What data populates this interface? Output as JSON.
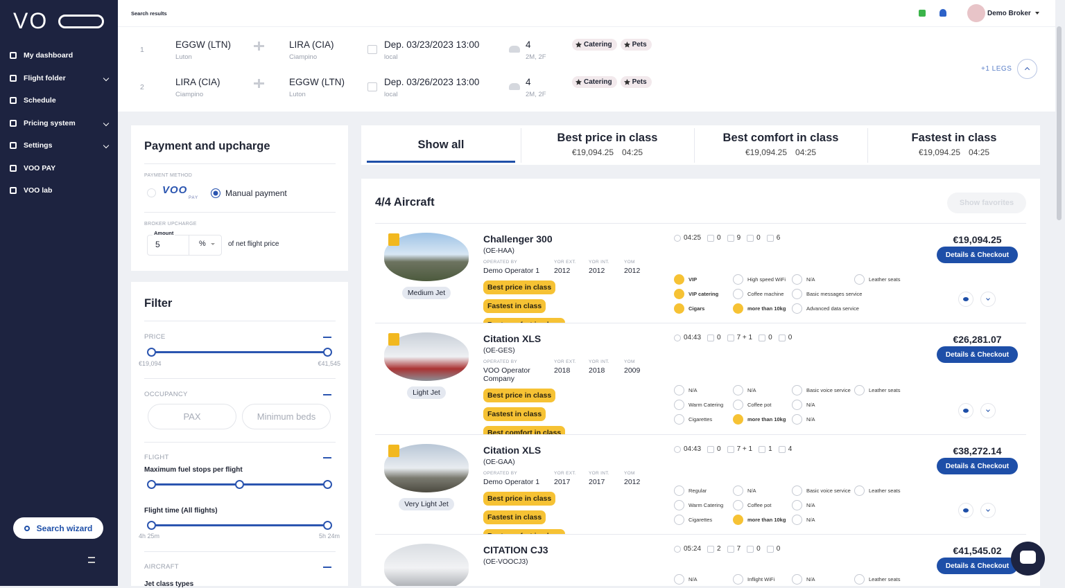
{
  "sidebar": {
    "logo": "VO",
    "menu": [
      "My dashboard",
      "Flight folder",
      "Schedule",
      "Pricing system",
      "Settings",
      "VOO PAY",
      "VOO lab"
    ],
    "search_button": "Search wizard"
  },
  "header": {
    "breadcrumb": "Search results",
    "user": "Demo Broker"
  },
  "legs": [
    {
      "num": "1",
      "from_code": "EGGW (LTN)",
      "from_city": "Luton",
      "to_code": "LIRA (CIA)",
      "to_city": "Ciampino",
      "date": "Dep. 03/23/2023 13:00",
      "tz": "local",
      "pax": "4",
      "pax_detail": "2M, 2F",
      "tags": [
        "Catering",
        "Pets"
      ]
    },
    {
      "num": "2",
      "from_code": "LIRA (CIA)",
      "from_city": "Ciampino",
      "to_code": "EGGW (LTN)",
      "to_city": "Luton",
      "date": "Dep. 03/26/2023 13:00",
      "tz": "local",
      "pax": "4",
      "pax_detail": "2M, 2F",
      "tags": [
        "Catering",
        "Pets"
      ]
    }
  ],
  "legs_more": "+1 LEGS",
  "payment": {
    "title": "Payment and upcharge",
    "method_label": "PAYMENT METHOD",
    "voo_pay_logo": [
      "VOO",
      "PAY"
    ],
    "manual": "Manual payment",
    "upcharge_label": "BROKER UPCHARGE",
    "amount_label": "Amount",
    "amount": "5",
    "unit": "%",
    "suffix": "of net flight price"
  },
  "filter": {
    "title": "Filter",
    "price_label": "PRICE",
    "price_min": "€19,094",
    "price_max": "€41,545",
    "occupancy_label": "OCCUPANCY",
    "pax_placeholder": "PAX",
    "beds_placeholder": "Minimum beds",
    "flight_label": "FLIGHT",
    "fuel_stops": "Maximum fuel stops per flight",
    "flight_time": "Flight time (All flights)",
    "time_min": "4h 25m",
    "time_max": "5h 24m",
    "aircraft_label": "AIRCRAFT",
    "jet_class": "Jet class types"
  },
  "tabs": {
    "show_all": "Show all",
    "items": [
      {
        "title": "Best price in class",
        "price": "€19,094.25",
        "time": "04:25"
      },
      {
        "title": "Best comfort in class",
        "price": "€19,094.25",
        "time": "04:25"
      },
      {
        "title": "Fastest in class",
        "price": "€19,094.25",
        "time": "04:25"
      }
    ]
  },
  "results": {
    "title": "4/4 Aircraft",
    "favorites": "Show favorites",
    "operated_label": "OPERATED BY",
    "yor_ext_label": "YOR EXT.",
    "yor_int_label": "YOR INT.",
    "yom_label": "YOM",
    "checkout": "Details & Checkout",
    "aircraft": [
      {
        "name": "Challenger 300",
        "reg": "(OE-HAA)",
        "class": "Medium Jet",
        "operator": "Demo Operator 1",
        "yor_ext": "2012",
        "yor_int": "2012",
        "yom": "2012",
        "badges": [
          "Best price in class",
          "Fastest in class",
          "Best comfort in class"
        ],
        "stats": [
          "04:25",
          "0",
          "9",
          "0",
          "6"
        ],
        "price": "€19,094.25",
        "amenities": [
          [
            {
              "label": "VIP",
              "hl": true
            },
            {
              "label": "VIP catering",
              "hl": true
            },
            {
              "label": "Cigars",
              "hl": true
            }
          ],
          [
            {
              "label": "High speed WiFi",
              "hl": false
            },
            {
              "label": "Coffee machine",
              "hl": false
            },
            {
              "label": "more than 10kg",
              "hl": true
            }
          ],
          [
            {
              "label": "N/A",
              "hl": false
            },
            {
              "label": "Basic messages service",
              "hl": false
            },
            {
              "label": "Advanced data service",
              "hl": false
            }
          ],
          [
            {
              "label": "Leather seats",
              "hl": false
            }
          ]
        ]
      },
      {
        "name": "Citation XLS",
        "reg": "(OE-GES)",
        "class": "Light Jet",
        "operator": "VOO Operator Company",
        "yor_ext": "2018",
        "yor_int": "2018",
        "yom": "2009",
        "badges": [
          "Best price in class",
          "Fastest in class",
          "Best comfort in class"
        ],
        "stats": [
          "04:43",
          "0",
          "7 + 1",
          "0",
          "0"
        ],
        "price": "€26,281.07",
        "amenities": [
          [
            {
              "label": "N/A",
              "hl": false
            },
            {
              "label": "Warm Catering",
              "hl": false
            },
            {
              "label": "Cigarettes",
              "hl": false
            }
          ],
          [
            {
              "label": "N/A",
              "hl": false
            },
            {
              "label": "Coffee pot",
              "hl": false
            },
            {
              "label": "more than 10kg",
              "hl": true
            }
          ],
          [
            {
              "label": "Basic voice service",
              "hl": false
            },
            {
              "label": "N/A",
              "hl": false
            },
            {
              "label": "N/A",
              "hl": false
            }
          ],
          [
            {
              "label": "Leather seats",
              "hl": false
            }
          ]
        ]
      },
      {
        "name": "Citation XLS",
        "reg": "(OE-GAA)",
        "class": "Very Light Jet",
        "operator": "Demo Operator 1",
        "yor_ext": "2017",
        "yor_int": "2017",
        "yom": "2012",
        "badges": [
          "Best price in class",
          "Fastest in class",
          "Best comfort in class"
        ],
        "stats": [
          "04:43",
          "0",
          "7 + 1",
          "1",
          "4"
        ],
        "price": "€38,272.14",
        "amenities": [
          [
            {
              "label": "Regular",
              "hl": false
            },
            {
              "label": "Warm Catering",
              "hl": false
            },
            {
              "label": "Cigarettes",
              "hl": false
            }
          ],
          [
            {
              "label": "N/A",
              "hl": false
            },
            {
              "label": "Coffee pot",
              "hl": false
            },
            {
              "label": "more than 10kg",
              "hl": true
            }
          ],
          [
            {
              "label": "Basic voice service",
              "hl": false
            },
            {
              "label": "N/A",
              "hl": false
            },
            {
              "label": "N/A",
              "hl": false
            }
          ],
          [
            {
              "label": "Leather seats",
              "hl": false
            }
          ]
        ]
      },
      {
        "name": "CITATION CJ3",
        "reg": "(OE-VOOCJ3)",
        "stats": [
          "05:24",
          "2",
          "7",
          "0",
          "0"
        ],
        "price": "€41,545.02",
        "amenities": [
          [
            {
              "label": "N/A",
              "hl": false
            }
          ],
          [
            {
              "label": "Inflight WiFi",
              "hl": false
            }
          ],
          [
            {
              "label": "N/A",
              "hl": false
            }
          ],
          [
            {
              "label": "Leather seats",
              "hl": false
            }
          ]
        ]
      }
    ]
  }
}
